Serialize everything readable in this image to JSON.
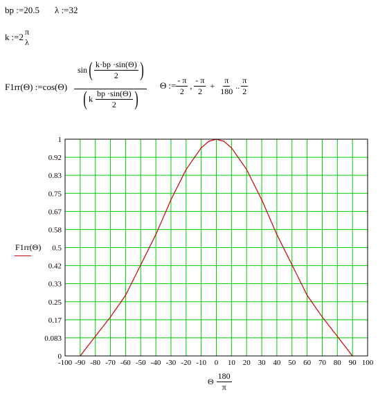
{
  "defs": {
    "bp_label": "bp",
    "bp_assign": ":=",
    "bp_value": "20.5",
    "lambda_label": "λ",
    "lambda_assign": ":=",
    "lambda_value": "32",
    "k_label": "k",
    "k_assign": ":=",
    "k_coef": "2",
    "k_num": "π",
    "k_den": "λ"
  },
  "func": {
    "name": "F1rr",
    "arg": "Θ",
    "assign": ":=",
    "cos": "cos",
    "sin": "sin",
    "num_inner_text": "k·bp ·sin",
    "num_inner_den": "2",
    "den_k": "k",
    "den_frac_num": "bp ·sin",
    "den_frac_den": "2"
  },
  "range_def": {
    "var": "Θ",
    "assign": ":=",
    "start_num": "- π",
    "start_den": "2",
    "comma": ",",
    "step_num": "- π",
    "step_den": "2",
    "plus": "+",
    "inc_num": "π",
    "inc_den": "180",
    "dots": "..",
    "end_num": "π",
    "end_den": "2"
  },
  "chart_data": {
    "type": "line",
    "title": "",
    "ylabel": "F1rr(Θ)",
    "xlabel_var": "Θ",
    "xlabel_num": "180",
    "xlabel_den": "π",
    "xlim": [
      -100,
      100
    ],
    "ylim": [
      0,
      1
    ],
    "x_ticks": [
      "-100",
      "-90",
      "-80",
      "-70",
      "-60",
      "-50",
      "-40",
      "-30",
      "-20",
      "-10",
      "0",
      "10",
      "20",
      "30",
      "40",
      "50",
      "60",
      "70",
      "80",
      "90",
      "100"
    ],
    "x_tick_values": [
      -100,
      -90,
      -80,
      -70,
      -60,
      -50,
      -40,
      -30,
      -20,
      -10,
      0,
      10,
      20,
      30,
      40,
      50,
      60,
      70,
      80,
      90,
      100
    ],
    "y_ticks": [
      "0",
      "0.083",
      "0.17",
      "0.25",
      "0.33",
      "0.42",
      "0.5",
      "0.58",
      "0.67",
      "0.75",
      "0.83",
      "0.92",
      "1"
    ],
    "y_tick_values": [
      0,
      0.0833,
      0.1667,
      0.25,
      0.3333,
      0.4167,
      0.5,
      0.5833,
      0.6667,
      0.75,
      0.8333,
      0.9167,
      1
    ],
    "grid": true,
    "series": [
      {
        "color": "#cc0000",
        "x": [
          -90,
          -80,
          -70,
          -60,
          -50,
          -40,
          -30,
          -20,
          -10,
          -5,
          0,
          5,
          10,
          20,
          30,
          40,
          50,
          60,
          70,
          80,
          90
        ],
        "y": [
          0.0,
          0.09,
          0.18,
          0.28,
          0.42,
          0.56,
          0.72,
          0.86,
          0.96,
          0.99,
          1.0,
          0.99,
          0.96,
          0.86,
          0.72,
          0.56,
          0.42,
          0.28,
          0.18,
          0.09,
          0.0
        ]
      }
    ],
    "colors": {
      "grid": "#00cc00",
      "line": "#cc0000",
      "frame": "#000000"
    }
  }
}
